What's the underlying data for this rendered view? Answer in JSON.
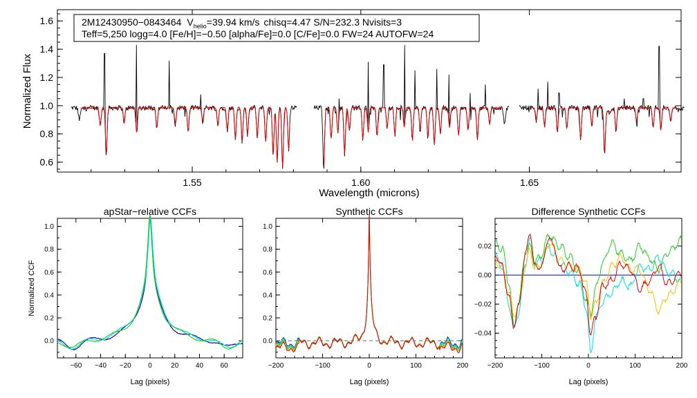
{
  "chart_data": [
    {
      "type": "line",
      "ylabel": "Normalized Flux",
      "xlabel": "Wavelength (microns)",
      "xlim": [
        1.51,
        1.695
      ],
      "ylim": [
        0.53,
        1.68
      ],
      "xticks": [
        1.55,
        1.6,
        1.65
      ],
      "xtick_labels": [
        "1.55",
        "1.60",
        "1.65"
      ],
      "yticks": [
        0.6,
        0.8,
        1.0,
        1.2,
        1.4,
        1.6
      ],
      "ytick_labels": [
        "0.6",
        "0.8",
        "1.0",
        "1.2",
        "1.4",
        "1.6"
      ],
      "annotation": {
        "star_id": "2M12430950−0843464",
        "v_prefix": "V",
        "v_sub": "helio",
        "v_value": "=39.94 km/s",
        "rest_line1": "chisq=4.47  S/N=232.3  Nvisits=3",
        "line2": "Teff=5,250 logg=4.0 [Fe/H]=−0.50 [alpha/Fe]=0.0 [C/Fe]=0.0 FW=24 AUTOFW=24"
      },
      "chips": [
        [
          1.514,
          1.581
        ],
        [
          1.586,
          1.644
        ],
        [
          1.647,
          1.696
        ]
      ],
      "series": [
        {
          "name": "observed",
          "color": "#000000"
        },
        {
          "name": "model",
          "color": "#dd0000"
        }
      ],
      "absorption_lines": [
        [
          1.5165,
          0.91
        ],
        [
          1.5227,
          0.87
        ],
        [
          1.5245,
          0.67
        ],
        [
          1.5298,
          0.89
        ],
        [
          1.5335,
          0.82
        ],
        [
          1.5395,
          0.86
        ],
        [
          1.545,
          0.88
        ],
        [
          1.5488,
          0.83
        ],
        [
          1.5531,
          0.9
        ],
        [
          1.5576,
          0.88
        ],
        [
          1.5604,
          0.84
        ],
        [
          1.5628,
          0.78
        ],
        [
          1.5648,
          0.76
        ],
        [
          1.5664,
          0.81
        ],
        [
          1.5693,
          0.79
        ],
        [
          1.5718,
          0.76
        ],
        [
          1.574,
          0.66
        ],
        [
          1.5752,
          0.62
        ],
        [
          1.5768,
          0.58
        ],
        [
          1.5786,
          0.7
        ],
        [
          1.589,
          0.57
        ],
        [
          1.5912,
          0.78
        ],
        [
          1.5932,
          0.82
        ],
        [
          1.5952,
          0.67
        ],
        [
          1.5966,
          0.84
        ],
        [
          1.6006,
          0.78
        ],
        [
          1.6022,
          0.82
        ],
        [
          1.6048,
          0.8
        ],
        [
          1.6078,
          0.85
        ],
        [
          1.6101,
          0.81
        ],
        [
          1.6129,
          0.86
        ],
        [
          1.6153,
          0.77
        ],
        [
          1.6176,
          0.84
        ],
        [
          1.6199,
          0.79
        ],
        [
          1.6218,
          0.74
        ],
        [
          1.6236,
          0.82
        ],
        [
          1.6263,
          0.86
        ],
        [
          1.629,
          0.8
        ],
        [
          1.6318,
          0.84
        ],
        [
          1.6346,
          0.78
        ],
        [
          1.6382,
          0.88
        ],
        [
          1.6426,
          0.87
        ],
        [
          1.652,
          0.91
        ],
        [
          1.6545,
          0.87
        ],
        [
          1.6583,
          0.83
        ],
        [
          1.6611,
          0.85
        ],
        [
          1.6652,
          0.78
        ],
        [
          1.6685,
          0.87
        ],
        [
          1.6723,
          0.69
        ],
        [
          1.6757,
          0.84
        ],
        [
          1.6818,
          0.9
        ],
        [
          1.6867,
          0.86
        ],
        [
          1.689,
          0.84
        ],
        [
          1.6919,
          0.9
        ]
      ],
      "emission_spikes": [
        [
          1.524,
          1.37
        ],
        [
          1.5335,
          1.43
        ],
        [
          1.5432,
          1.32
        ],
        [
          1.5525,
          1.08
        ],
        [
          1.5935,
          1.05
        ],
        [
          1.6022,
          1.31
        ],
        [
          1.6068,
          1.29
        ],
        [
          1.613,
          1.43
        ],
        [
          1.616,
          1.25
        ],
        [
          1.6225,
          1.26
        ],
        [
          1.6262,
          1.22
        ],
        [
          1.6324,
          1.09
        ],
        [
          1.637,
          1.15
        ],
        [
          1.6526,
          1.12
        ],
        [
          1.6554,
          1.17
        ],
        [
          1.6588,
          1.09
        ],
        [
          1.6782,
          1.05
        ],
        [
          1.6838,
          1.05
        ],
        [
          1.6885,
          1.42
        ]
      ]
    },
    {
      "type": "line",
      "title": "apStar−relative CCFs",
      "xlabel": "Lag (pixels)",
      "ylabel": "Normalized CCF",
      "xlim": [
        -75,
        75
      ],
      "ylim": [
        -0.15,
        1.07
      ],
      "xticks": [
        -60,
        -40,
        -20,
        0,
        20,
        40,
        60
      ],
      "xtick_labels": [
        "−60",
        "−40",
        "−20",
        "0",
        "20",
        "40",
        "60"
      ],
      "yticks": [
        0.0,
        0.2,
        0.4,
        0.6,
        0.8,
        1.0
      ],
      "ytick_labels": [
        "0.0",
        "0.2",
        "0.4",
        "0.6",
        "0.8",
        "1.0"
      ],
      "series": [
        {
          "name": "visit 1",
          "color": "#0000aa",
          "peak": 1.0,
          "width": 7.0,
          "wing": 0.1,
          "offset": 0.0
        },
        {
          "name": "visit 2",
          "color": "#00dddd",
          "peak": 0.98,
          "width": 7.8,
          "wing": 0.11,
          "offset": 0.3
        },
        {
          "name": "visit 3",
          "color": "#22cc22",
          "peak": 0.99,
          "width": 7.4,
          "wing": 0.1,
          "offset": -0.2
        }
      ]
    },
    {
      "type": "line",
      "title": "Synthetic CCFs",
      "xlabel": "Lag (pixels)",
      "xlim": [
        -200,
        200
      ],
      "ylim": [
        -0.15,
        1.07
      ],
      "xticks": [
        -200,
        -100,
        0,
        100,
        200
      ],
      "xtick_labels": [
        "−200",
        "−100",
        "0",
        "100",
        "200"
      ],
      "yticks": [
        0.0,
        0.2,
        0.4,
        0.6,
        0.8,
        1.0
      ],
      "ytick_labels": [
        "0.0",
        "0.2",
        "0.4",
        "0.6",
        "0.8",
        "1.0"
      ],
      "reference_line": 0.0,
      "series": [
        {
          "name": "synthetic 1",
          "color": "#0000aa"
        },
        {
          "name": "synthetic 2",
          "color": "#00dddd"
        },
        {
          "name": "synthetic 3",
          "color": "#22cc22"
        },
        {
          "name": "synthetic 4",
          "color": "#ffbb00"
        },
        {
          "name": "synthetic 5",
          "color": "#dd0000"
        }
      ]
    },
    {
      "type": "line",
      "title": "Difference Synthetic CCFs",
      "xlabel": "Lag (pixels)",
      "xlim": [
        -200,
        200
      ],
      "ylim": [
        -0.057,
        0.039
      ],
      "xticks": [
        -200,
        -100,
        0,
        100,
        200
      ],
      "xtick_labels": [
        "−200",
        "−100",
        "0",
        "100",
        "200"
      ],
      "yticks": [
        -0.04,
        -0.02,
        0.0,
        0.02
      ],
      "ytick_labels": [
        "−0.04",
        "−0.02",
        "0.00",
        "0.02"
      ],
      "series": [
        {
          "name": "difference 1",
          "color": "#0000aa"
        },
        {
          "name": "difference 2",
          "color": "#00dddd"
        },
        {
          "name": "difference 3",
          "color": "#22cc22"
        },
        {
          "name": "difference 4",
          "color": "#ffbb00"
        },
        {
          "name": "difference 5",
          "color": "#dd0000"
        }
      ],
      "anchors": [
        [
          [
            -200,
            0.017
          ],
          [
            -185,
            0.012
          ],
          [
            -170,
            -0.018
          ],
          [
            -160,
            -0.037
          ],
          [
            -150,
            -0.024
          ],
          [
            -135,
            0.012
          ],
          [
            -125,
            0.033
          ],
          [
            -115,
            0.01
          ],
          [
            -100,
            0.004
          ],
          [
            -85,
            0.026
          ],
          [
            -75,
            0.018
          ],
          [
            -60,
            0.006
          ],
          [
            -40,
            0.004
          ],
          [
            -20,
            0.004
          ],
          [
            -5,
            -0.01
          ],
          [
            5,
            -0.048
          ],
          [
            15,
            -0.035
          ],
          [
            30,
            -0.01
          ],
          [
            50,
            0.002
          ],
          [
            70,
            0.006
          ],
          [
            90,
            0.004
          ],
          [
            110,
            0.001
          ],
          [
            130,
            -0.003
          ],
          [
            150,
            0.004
          ],
          [
            170,
            -0.004
          ],
          [
            200,
            -0.006
          ]
        ],
        [
          [
            -200,
            0.013
          ],
          [
            -185,
            0.006
          ],
          [
            -170,
            -0.02
          ],
          [
            -160,
            -0.038
          ],
          [
            -150,
            -0.026
          ],
          [
            -135,
            0.008
          ],
          [
            -125,
            0.024
          ],
          [
            -115,
            0.008
          ],
          [
            -100,
            0.01
          ],
          [
            -85,
            0.02
          ],
          [
            -75,
            0.014
          ],
          [
            -60,
            0.008
          ],
          [
            -40,
            0.002
          ],
          [
            -20,
            -0.006
          ],
          [
            -5,
            -0.022
          ],
          [
            5,
            -0.054
          ],
          [
            15,
            -0.03
          ],
          [
            30,
            -0.018
          ],
          [
            50,
            -0.012
          ],
          [
            70,
            -0.004
          ],
          [
            90,
            -0.008
          ],
          [
            110,
            0.006
          ],
          [
            130,
            0.004
          ],
          [
            150,
            0.012
          ],
          [
            170,
            0.002
          ],
          [
            200,
            -0.004
          ]
        ],
        [
          [
            -200,
            0.022
          ],
          [
            -185,
            0.018
          ],
          [
            -170,
            -0.005
          ],
          [
            -160,
            -0.036
          ],
          [
            -150,
            -0.02
          ],
          [
            -135,
            0.016
          ],
          [
            -125,
            0.02
          ],
          [
            -115,
            0.009
          ],
          [
            -100,
            0.014
          ],
          [
            -85,
            0.028
          ],
          [
            -75,
            0.024
          ],
          [
            -60,
            0.019
          ],
          [
            -40,
            0.012
          ],
          [
            -20,
            0.002
          ],
          [
            -5,
            -0.018
          ],
          [
            5,
            -0.026
          ],
          [
            15,
            -0.01
          ],
          [
            30,
            0.008
          ],
          [
            50,
            0.022
          ],
          [
            70,
            0.014
          ],
          [
            90,
            0.01
          ],
          [
            110,
            0.02
          ],
          [
            130,
            0.012
          ],
          [
            150,
            0.004
          ],
          [
            170,
            0.016
          ],
          [
            200,
            0.024
          ]
        ],
        [
          [
            -200,
            0.01
          ],
          [
            -185,
            0.005
          ],
          [
            -170,
            -0.012
          ],
          [
            -160,
            -0.028
          ],
          [
            -150,
            -0.022
          ],
          [
            -135,
            0.006
          ],
          [
            -125,
            0.018
          ],
          [
            -115,
            0.004
          ],
          [
            -100,
            0.008
          ],
          [
            -85,
            0.022
          ],
          [
            -75,
            0.018
          ],
          [
            -60,
            0.01
          ],
          [
            -40,
            0.006
          ],
          [
            -20,
            0.004
          ],
          [
            -5,
            -0.006
          ],
          [
            5,
            -0.028
          ],
          [
            15,
            -0.02
          ],
          [
            30,
            -0.006
          ],
          [
            50,
            0.006
          ],
          [
            70,
            0.012
          ],
          [
            90,
            0.004
          ],
          [
            110,
            0.004
          ],
          [
            130,
            -0.01
          ],
          [
            150,
            -0.024
          ],
          [
            170,
            -0.014
          ],
          [
            200,
            -0.004
          ]
        ],
        [
          [
            -200,
            0.015
          ],
          [
            -185,
            0.006
          ],
          [
            -170,
            -0.016
          ],
          [
            -160,
            -0.034
          ],
          [
            -150,
            -0.022
          ],
          [
            -135,
            0.014
          ],
          [
            -125,
            0.03
          ],
          [
            -115,
            0.006
          ],
          [
            -100,
            0.006
          ],
          [
            -85,
            0.026
          ],
          [
            -75,
            0.02
          ],
          [
            -60,
            0.004
          ],
          [
            -40,
            0.006
          ],
          [
            -20,
            0.004
          ],
          [
            -5,
            -0.014
          ],
          [
            5,
            -0.04
          ],
          [
            15,
            -0.03
          ],
          [
            30,
            -0.008
          ],
          [
            50,
            -0.004
          ],
          [
            70,
            0.008
          ],
          [
            90,
            0.004
          ],
          [
            110,
            -0.01
          ],
          [
            130,
            -0.004
          ],
          [
            150,
            0.006
          ],
          [
            170,
            -0.006
          ],
          [
            200,
            0.002
          ]
        ]
      ],
      "zero_line_color": "#0000aa"
    }
  ]
}
